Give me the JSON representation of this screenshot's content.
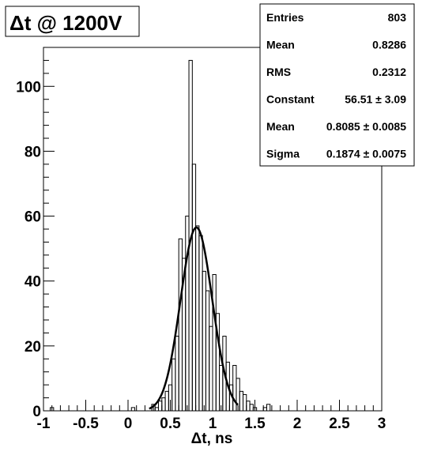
{
  "title": "Δt @ 1200V",
  "stats": {
    "rows": [
      {
        "label": "Entries",
        "value": "803"
      },
      {
        "label": "Mean",
        "value": "0.8286"
      },
      {
        "label": "RMS",
        "value": "0.2312"
      },
      {
        "label": "Constant",
        "value": "56.51 ± 3.09"
      },
      {
        "label": "Mean",
        "value": "0.8085 ± 0.0085"
      },
      {
        "label": "Sigma",
        "value": "0.1874 ± 0.0075"
      }
    ]
  },
  "chart_data": {
    "type": "histogram",
    "title": "Δt @ 1200V",
    "xlabel": "Δt, ns",
    "ylabel": "",
    "xlim": [
      -1,
      3
    ],
    "ylim": [
      0,
      112
    ],
    "x_ticks": [
      "-1",
      "-0.5",
      "0",
      "0.5",
      "1",
      "1.5",
      "2",
      "2.5",
      "3"
    ],
    "y_ticks": [
      "0",
      "20",
      "40",
      "60",
      "80",
      "100"
    ],
    "bin_width": 0.04,
    "bins": [
      {
        "x": -0.92,
        "y": 1
      },
      {
        "x": 0.04,
        "y": 1
      },
      {
        "x": 0.28,
        "y": 2
      },
      {
        "x": 0.32,
        "y": 1
      },
      {
        "x": 0.36,
        "y": 3
      },
      {
        "x": 0.4,
        "y": 4
      },
      {
        "x": 0.44,
        "y": 6
      },
      {
        "x": 0.48,
        "y": 8
      },
      {
        "x": 0.52,
        "y": 16
      },
      {
        "x": 0.56,
        "y": 23
      },
      {
        "x": 0.6,
        "y": 53
      },
      {
        "x": 0.64,
        "y": 47
      },
      {
        "x": 0.68,
        "y": 60
      },
      {
        "x": 0.72,
        "y": 108
      },
      {
        "x": 0.76,
        "y": 76
      },
      {
        "x": 0.8,
        "y": 57
      },
      {
        "x": 0.84,
        "y": 54
      },
      {
        "x": 0.88,
        "y": 43
      },
      {
        "x": 0.92,
        "y": 37
      },
      {
        "x": 0.96,
        "y": 26
      },
      {
        "x": 1.0,
        "y": 42
      },
      {
        "x": 1.04,
        "y": 30
      },
      {
        "x": 1.08,
        "y": 14
      },
      {
        "x": 1.12,
        "y": 23
      },
      {
        "x": 1.16,
        "y": 15
      },
      {
        "x": 1.2,
        "y": 8
      },
      {
        "x": 1.24,
        "y": 14
      },
      {
        "x": 1.28,
        "y": 10
      },
      {
        "x": 1.32,
        "y": 6
      },
      {
        "x": 1.36,
        "y": 5
      },
      {
        "x": 1.4,
        "y": 3
      },
      {
        "x": 1.44,
        "y": 2
      },
      {
        "x": 1.48,
        "y": 1
      },
      {
        "x": 1.6,
        "y": 1
      },
      {
        "x": 1.64,
        "y": 2
      }
    ],
    "fit": {
      "function": "gaus",
      "constant": 56.51,
      "mean": 0.8085,
      "sigma": 0.1874,
      "x_range": [
        0.25,
        1.3
      ]
    }
  }
}
